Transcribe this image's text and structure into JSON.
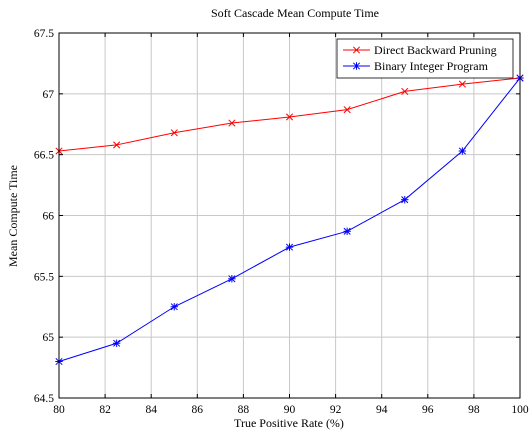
{
  "chart_data": {
    "type": "line",
    "title": "Soft Cascade Mean Compute Time",
    "xlabel": "True Positive Rate (%)",
    "ylabel": "Mean Compute Time",
    "xlim": [
      80,
      100
    ],
    "ylim": [
      64.5,
      67.5
    ],
    "xticks": [
      80,
      82,
      84,
      86,
      88,
      90,
      92,
      94,
      96,
      98,
      100
    ],
    "yticks": [
      64.5,
      65,
      65.5,
      66,
      66.5,
      67,
      67.5
    ],
    "xtick_labels": [
      "80",
      "82",
      "84",
      "86",
      "88",
      "90",
      "92",
      "94",
      "96",
      "98",
      "100"
    ],
    "ytick_labels": [
      "64.5",
      "65",
      "65.5",
      "66",
      "66.5",
      "67",
      "67.5"
    ],
    "grid": true,
    "legend_position": "top-right",
    "series": [
      {
        "name": "Direct Backward Pruning",
        "color": "#ff0000",
        "marker": "x",
        "x": [
          80,
          82.5,
          85,
          87.5,
          90,
          92.5,
          95,
          97.5,
          100
        ],
        "values": [
          66.53,
          66.58,
          66.68,
          66.76,
          66.81,
          66.87,
          67.02,
          67.08,
          67.13
        ]
      },
      {
        "name": "Binary Integer Program",
        "color": "#0000ff",
        "marker": "star",
        "x": [
          80,
          82.5,
          85,
          87.5,
          90,
          92.5,
          95,
          97.5,
          100
        ],
        "values": [
          64.8,
          64.95,
          65.25,
          65.48,
          65.74,
          65.87,
          66.13,
          66.53,
          67.13
        ]
      }
    ]
  }
}
